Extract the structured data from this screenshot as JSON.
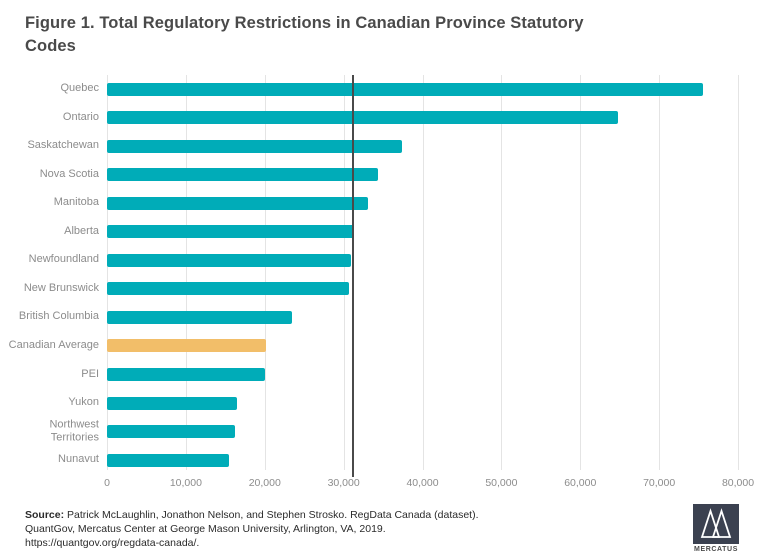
{
  "title": "Figure 1. Total Regulatory Restrictions in Canadian Province Statutory Codes",
  "chart_data": {
    "type": "bar",
    "orientation": "horizontal",
    "title": "Figure 1. Total Regulatory Restrictions in Canadian Province Statutory Codes",
    "categories": [
      "Quebec",
      "Ontario",
      "Saskatchewan",
      "Nova Scotia",
      "Manitoba",
      "Alberta",
      "Newfoundland",
      "New Brunswick",
      "British Columbia",
      "Canadian Average",
      "PEI",
      "Yukon",
      "Northwest Territories",
      "Nunavut"
    ],
    "values": [
      75600,
      64800,
      37400,
      34400,
      33100,
      31300,
      30900,
      30700,
      23500,
      20200,
      20000,
      16500,
      16200,
      15500
    ],
    "highlight_category": "Canadian Average",
    "xlim": [
      0,
      80000
    ],
    "x_tick_values": [
      0,
      10000,
      20000,
      30000,
      40000,
      50000,
      60000,
      70000,
      80000
    ],
    "x_tick_labels": [
      "0",
      "10,000",
      "20,000",
      "30,000",
      "40,000",
      "50,000",
      "60,000",
      "70,000",
      "80,000"
    ],
    "reference_line_value": 31200,
    "grid": true,
    "legend": false,
    "xlabel": "",
    "ylabel": "",
    "colors": {
      "bar": "#00acb8",
      "highlight_bar": "#f2be69",
      "gridline": "#e4e4e4",
      "reference_line": "#4a4a4a",
      "axis_text": "#8c8c8c",
      "title_text": "#4a4a4a"
    }
  },
  "source": {
    "label": "Source:",
    "line1": " Patrick McLaughlin, Jonathon Nelson, and Stephen Strosko. RegData Canada (dataset).",
    "line2": "QuantGov, Mercatus Center at George Mason University, Arlington, VA, 2019.",
    "line3": "https://quantgov.org/regdata-canada/."
  },
  "logo": {
    "word": "MERCATUS",
    "square_color": "#3b4150",
    "mark": "mercatus-m-mountains"
  }
}
